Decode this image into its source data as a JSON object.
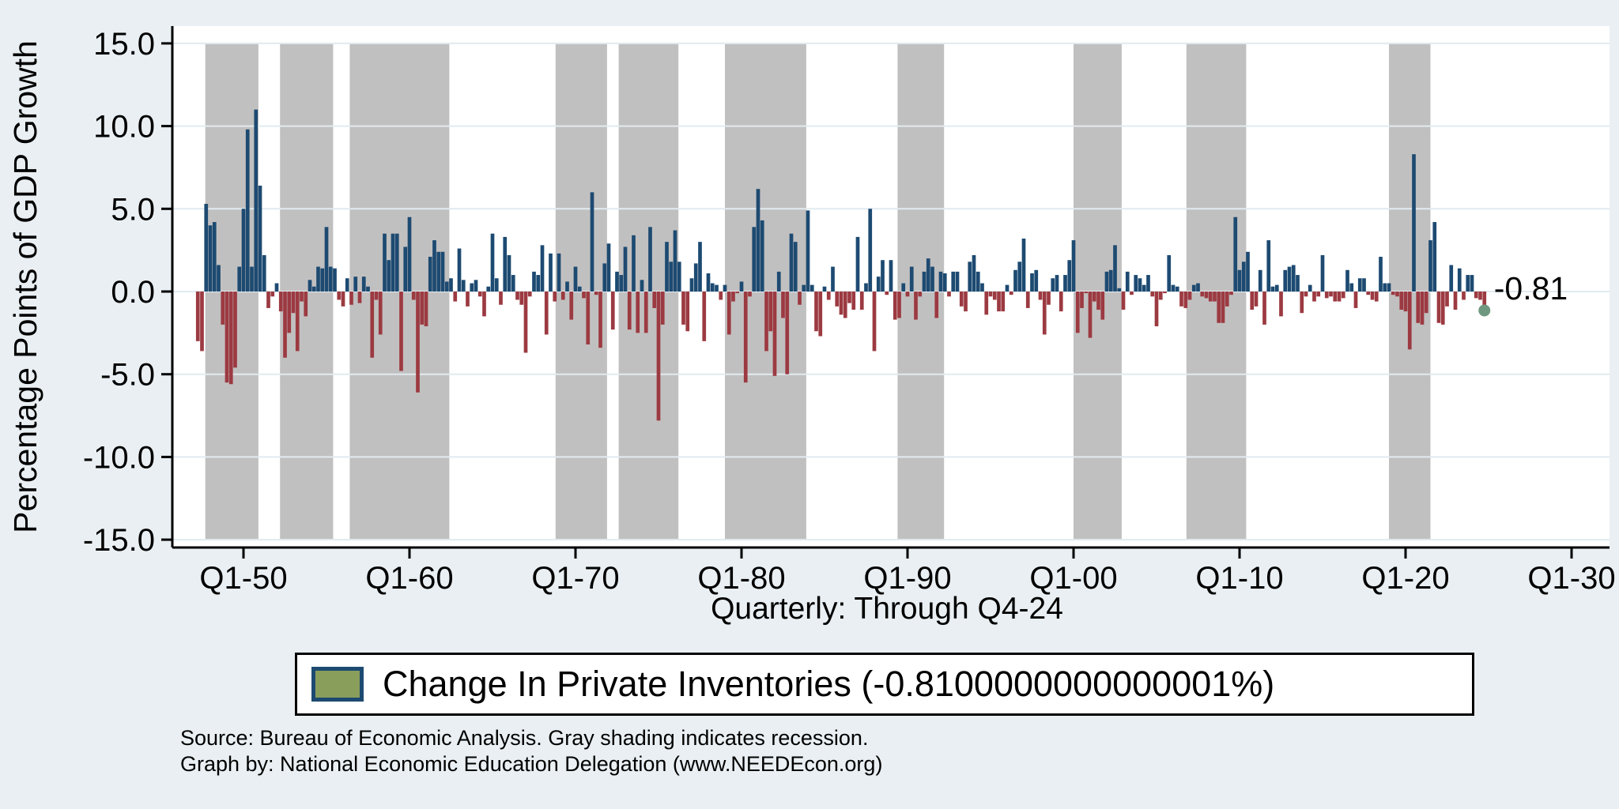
{
  "figure": {
    "y_axis_title": "Percentage Points of GDP Growth",
    "x_axis_title": "Quarterly: Through Q4-24",
    "end_point_label": "-0.81",
    "legend": {
      "label": "Change In Private Inventories (-0.8100000000000001%)"
    },
    "notes": {
      "line1": "Source: Bureau of Economic Analysis. Gray shading indicates recession.",
      "line2": "Graph by: National Economic Education Delegation (www.NEEDEcon.org)"
    },
    "colors": {
      "canvas_bg": "#e9eff2",
      "plot_bg": "#ffffff",
      "gridline": "#e1ebf0",
      "axis": "#000000",
      "positive_bar": "#1d4a71",
      "negative_bar": "#9c3a41",
      "recession_shading": "#c1c0c0",
      "end_dot": "#6f9880",
      "legend_swatch_fill": "#8a9e5c",
      "legend_swatch_border": "#1d4a71"
    }
  },
  "chart_data": {
    "type": "bar",
    "title": "",
    "ylabel": "Percentage Points of GDP Growth",
    "xlabel": "Quarterly: Through Q4-24",
    "ylim": [
      -15,
      15
    ],
    "grid": true,
    "legend_position": "bottom",
    "y_ticks": [
      {
        "value": 15,
        "label": "15.0"
      },
      {
        "value": 10,
        "label": "10.0"
      },
      {
        "value": 5,
        "label": "5.0"
      },
      {
        "value": 0,
        "label": "0.0"
      },
      {
        "value": -5,
        "label": "-5.0"
      },
      {
        "value": -10,
        "label": "-10.0"
      },
      {
        "value": -15,
        "label": "-15.0"
      }
    ],
    "x_ticks": [
      {
        "t": 1950,
        "label": "Q1-50"
      },
      {
        "t": 1960,
        "label": "Q1-60"
      },
      {
        "t": 1970,
        "label": "Q1-70"
      },
      {
        "t": 1980,
        "label": "Q1-80"
      },
      {
        "t": 1990,
        "label": "Q1-90"
      },
      {
        "t": 2000,
        "label": "Q1-00"
      },
      {
        "t": 2010,
        "label": "Q1-10"
      },
      {
        "t": 2020,
        "label": "Q1-20"
      },
      {
        "t": 2030,
        "label": "Q1-30"
      }
    ],
    "series_name": "Change In Private Inventories",
    "frequency": "quarterly",
    "start_year": 1947,
    "start_quarter": 2,
    "end_quarter_label": "Q4-24",
    "last_point": {
      "quarter": "Q4-24",
      "value": -0.81,
      "label": "-0.81"
    },
    "values": [
      -3.0,
      -3.6,
      5.3,
      4.0,
      4.2,
      1.6,
      -2.0,
      -5.5,
      -5.6,
      -4.6,
      1.5,
      5.0,
      9.8,
      1.5,
      11.0,
      6.4,
      2.2,
      -1.0,
      -0.3,
      0.5,
      -1.2,
      -4.0,
      -2.5,
      -1.3,
      -3.6,
      -0.6,
      -1.5,
      0.7,
      0.3,
      1.5,
      1.4,
      3.9,
      1.5,
      1.4,
      -0.5,
      -0.9,
      0.8,
      -0.8,
      0.9,
      -0.7,
      0.9,
      0.3,
      -4.0,
      -0.5,
      -2.6,
      3.5,
      1.9,
      3.5,
      3.5,
      -4.8,
      2.7,
      4.5,
      -0.5,
      -6.1,
      -2.0,
      -2.1,
      2.1,
      3.1,
      2.4,
      2.4,
      0.6,
      0.8,
      -0.6,
      2.6,
      0.7,
      -0.9,
      0.5,
      0.7,
      -0.3,
      -1.5,
      0.3,
      3.5,
      0.8,
      -0.8,
      3.3,
      2.2,
      1.0,
      -0.5,
      -0.8,
      -3.7,
      -0.3,
      1.2,
      1.0,
      2.8,
      -2.6,
      2.3,
      -0.6,
      2.3,
      -0.5,
      0.6,
      -1.7,
      1.5,
      0.3,
      -0.4,
      -3.2,
      6.0,
      -0.2,
      -3.4,
      1.7,
      2.9,
      -2.3,
      1.2,
      1.0,
      2.7,
      -2.3,
      3.4,
      -2.5,
      0.7,
      -2.5,
      3.9,
      -1.0,
      -7.8,
      -2.0,
      3.0,
      1.8,
      3.7,
      1.8,
      -2.0,
      -2.4,
      0.8,
      1.7,
      3.0,
      -3.0,
      1.1,
      0.5,
      0.4,
      -0.5,
      0.4,
      -2.6,
      -0.6,
      -0.1,
      0.6,
      -5.5,
      -0.3,
      3.9,
      6.2,
      4.3,
      -3.6,
      -2.4,
      -5.1,
      1.2,
      -1.6,
      -5.0,
      3.5,
      3.0,
      -0.8,
      0.4,
      4.9,
      0.4,
      -2.4,
      -2.7,
      0.3,
      -0.5,
      1.5,
      -0.9,
      -1.4,
      -1.6,
      -0.7,
      -1.1,
      3.3,
      -1.1,
      0.5,
      5.0,
      -3.6,
      0.9,
      1.9,
      -0.2,
      1.9,
      -1.7,
      -1.6,
      0.5,
      -0.3,
      1.5,
      -1.7,
      -0.3,
      1.2,
      2.0,
      1.5,
      -1.6,
      1.2,
      1.1,
      -0.3,
      1.2,
      1.2,
      -0.9,
      -1.2,
      1.8,
      2.2,
      1.2,
      0.5,
      -1.4,
      -0.3,
      -0.5,
      -1.2,
      -1.2,
      0.4,
      -0.2,
      1.3,
      1.8,
      3.2,
      -1.0,
      1.1,
      1.3,
      -0.5,
      -2.6,
      -0.8,
      0.8,
      1.0,
      -1.2,
      1.0,
      1.9,
      3.1,
      -2.5,
      -1.0,
      -0.1,
      -2.8,
      -0.6,
      -1.1,
      -1.7,
      1.2,
      1.3,
      2.8,
      0.2,
      -1.1,
      1.2,
      -0.2,
      1.0,
      0.8,
      0.4,
      1.0,
      -0.3,
      -2.1,
      -0.5,
      -0.1,
      2.2,
      0.4,
      0.3,
      -0.9,
      -1.0,
      -0.5,
      0.4,
      0.5,
      -0.3,
      -0.4,
      -0.6,
      -0.6,
      -1.9,
      -1.9,
      -0.9,
      -0.2,
      4.5,
      1.3,
      1.8,
      2.4,
      -1.1,
      -0.9,
      1.3,
      -2.0,
      3.1,
      0.3,
      0.4,
      -1.5,
      1.3,
      1.5,
      1.6,
      1.0,
      -1.3,
      -0.3,
      0.4,
      -0.6,
      -0.3,
      2.2,
      -0.4,
      -0.3,
      -0.6,
      -0.6,
      -0.4,
      1.3,
      0.5,
      -1.0,
      0.8,
      0.8,
      -0.2,
      -0.5,
      -0.6,
      2.1,
      0.5,
      0.5,
      -0.2,
      -0.3,
      -1.1,
      -1.2,
      -3.5,
      8.3,
      -1.9,
      -2.0,
      -1.3,
      3.1,
      4.2,
      -1.9,
      -2.0,
      -0.9,
      1.6,
      -1.1,
      1.4,
      -0.5,
      1.0,
      1.0,
      -0.4,
      -0.5,
      -0.81
    ],
    "recession_bands": [
      [
        1947.7,
        1950.9
      ],
      [
        1952.2,
        1955.4
      ],
      [
        1956.4,
        1962.4
      ],
      [
        1968.8,
        1971.9
      ],
      [
        1972.6,
        1976.2
      ],
      [
        1979.0,
        1983.9
      ],
      [
        1989.4,
        1992.2
      ],
      [
        2000.0,
        2002.9
      ],
      [
        2006.8,
        2010.4
      ],
      [
        2019.0,
        2021.5
      ]
    ]
  }
}
